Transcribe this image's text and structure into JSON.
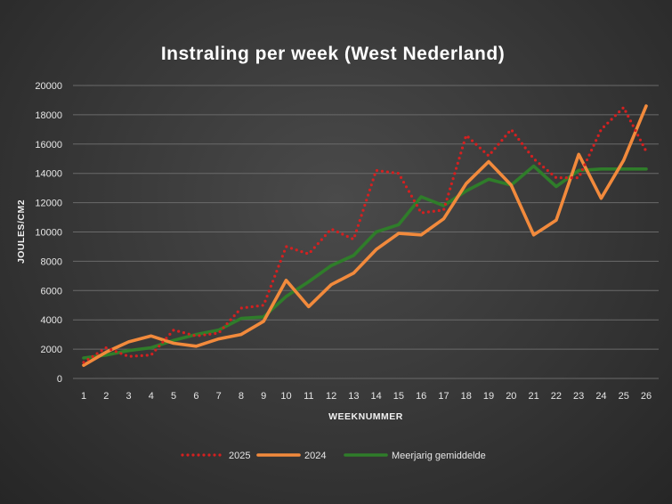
{
  "chart_data": {
    "type": "line",
    "title": "Instraling per week (West Nederland)",
    "xlabel": "WEEKNUMMER",
    "ylabel": "JOULES/CM2",
    "x": [
      1,
      2,
      3,
      4,
      5,
      6,
      7,
      8,
      9,
      10,
      11,
      12,
      13,
      14,
      15,
      16,
      17,
      18,
      19,
      20,
      21,
      22,
      23,
      24,
      25,
      26
    ],
    "ylim": [
      0,
      20000
    ],
    "yticks": [
      0,
      2000,
      4000,
      6000,
      8000,
      10000,
      12000,
      14000,
      16000,
      18000,
      20000
    ],
    "grid": "horizontal",
    "legend": "bottom",
    "series": [
      {
        "name": "2025",
        "color": "#d42020",
        "style": "dotted",
        "values": [
          1100,
          2100,
          1500,
          1600,
          3300,
          2900,
          3100,
          4800,
          5000,
          9000,
          8500,
          10200,
          9500,
          14200,
          14000,
          11300,
          11500,
          16600,
          15200,
          17000,
          15000,
          13700,
          13700,
          17000,
          18500,
          15500
        ]
      },
      {
        "name": "2024",
        "color": "#f28a3c",
        "style": "solid",
        "values": [
          900,
          1800,
          2500,
          2900,
          2400,
          2200,
          2700,
          3000,
          3900,
          6700,
          4900,
          6400,
          7200,
          8800,
          9900,
          9800,
          10900,
          13300,
          14800,
          13200,
          9800,
          10800,
          15300,
          12300,
          14900,
          18600
        ]
      },
      {
        "name": "Meerjarig gemiddelde",
        "color": "#2f7d2a",
        "style": "solid",
        "values": [
          1400,
          1600,
          1900,
          2100,
          2600,
          3000,
          3300,
          4100,
          4200,
          5600,
          6600,
          7700,
          8400,
          10000,
          10500,
          12400,
          11800,
          12800,
          13600,
          13200,
          14500,
          13100,
          14200,
          14300,
          14300,
          14300
        ]
      }
    ]
  }
}
